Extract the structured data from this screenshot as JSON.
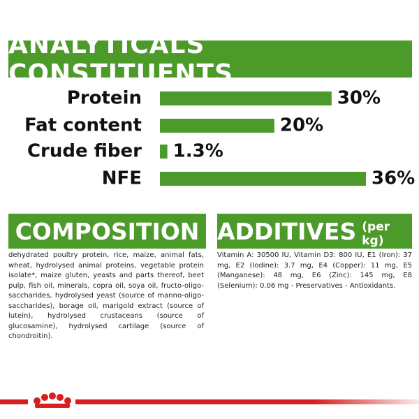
{
  "chart_data": {
    "type": "bar",
    "title": "ANALYTICALS CONSTITUENTS",
    "categories": [
      "Protein",
      "Fat content",
      "Crude fiber",
      "NFE"
    ],
    "values": [
      30,
      20,
      1.3,
      36
    ],
    "value_labels": [
      "30%",
      "20%",
      "1.3%",
      "36%"
    ],
    "color": "#4c9a2a"
  },
  "composition": {
    "title": "COMPOSITION",
    "text": "dehydrated poultry protein, rice, maize, animal fats, wheat, hydrolysed animal proteins, vegetable protein isolate*, maize gluten, yeasts and parts thereof, beet pulp, fish oil, minerals, copra oil, soya oil, fructo-oligo-saccharides, hydrolysed yeast (source of manno-oligo-saccharides), borage oil, marigold extract (source of lutein), hydrolysed crustaceans (source of glucosamine), hydrolysed cartilage (source of chondroitin)."
  },
  "additives": {
    "title": "ADDITIVES",
    "unit": "(per kg)",
    "text": "Vitamin A: 30500 IU, Vitamin D3: 800 IU, E1 (Iron): 37 mg, E2 (Iodine): 3.7 mg, E4 (Copper): 11 mg, E5 (Manganese): 48 mg, E6 (Zinc): 145 mg, E8 (Selenium): 0.06 mg - Preservatives - Antioxidants."
  }
}
